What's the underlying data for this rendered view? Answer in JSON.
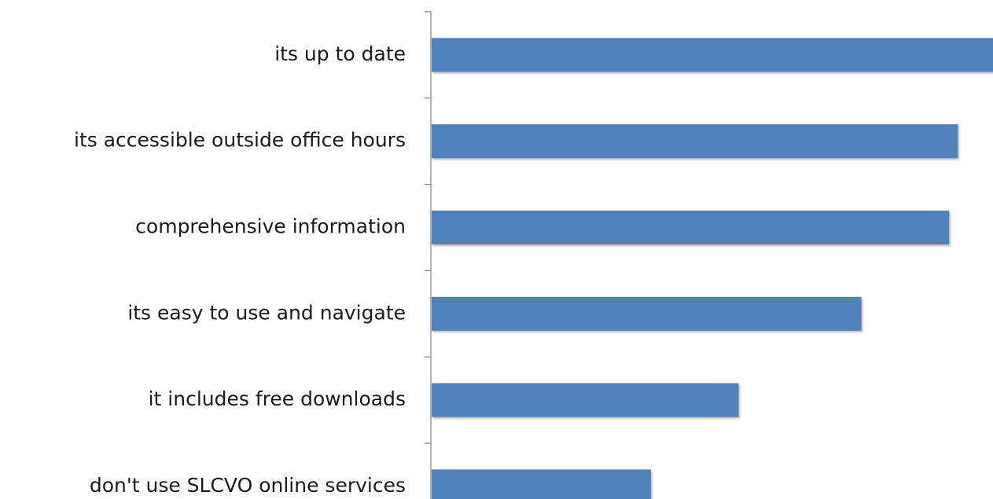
{
  "chart_data": {
    "type": "barh",
    "categories": [
      "its up to date",
      "its accessible outside office hours",
      "comprehensive information",
      "its easy to use and navigate",
      "it includes free downloads",
      "don't use SLCVO online services"
    ],
    "values": [
      64,
      60,
      59,
      49,
      35,
      25
    ],
    "color": "#4f81bd",
    "xlim": [
      0,
      64
    ]
  }
}
